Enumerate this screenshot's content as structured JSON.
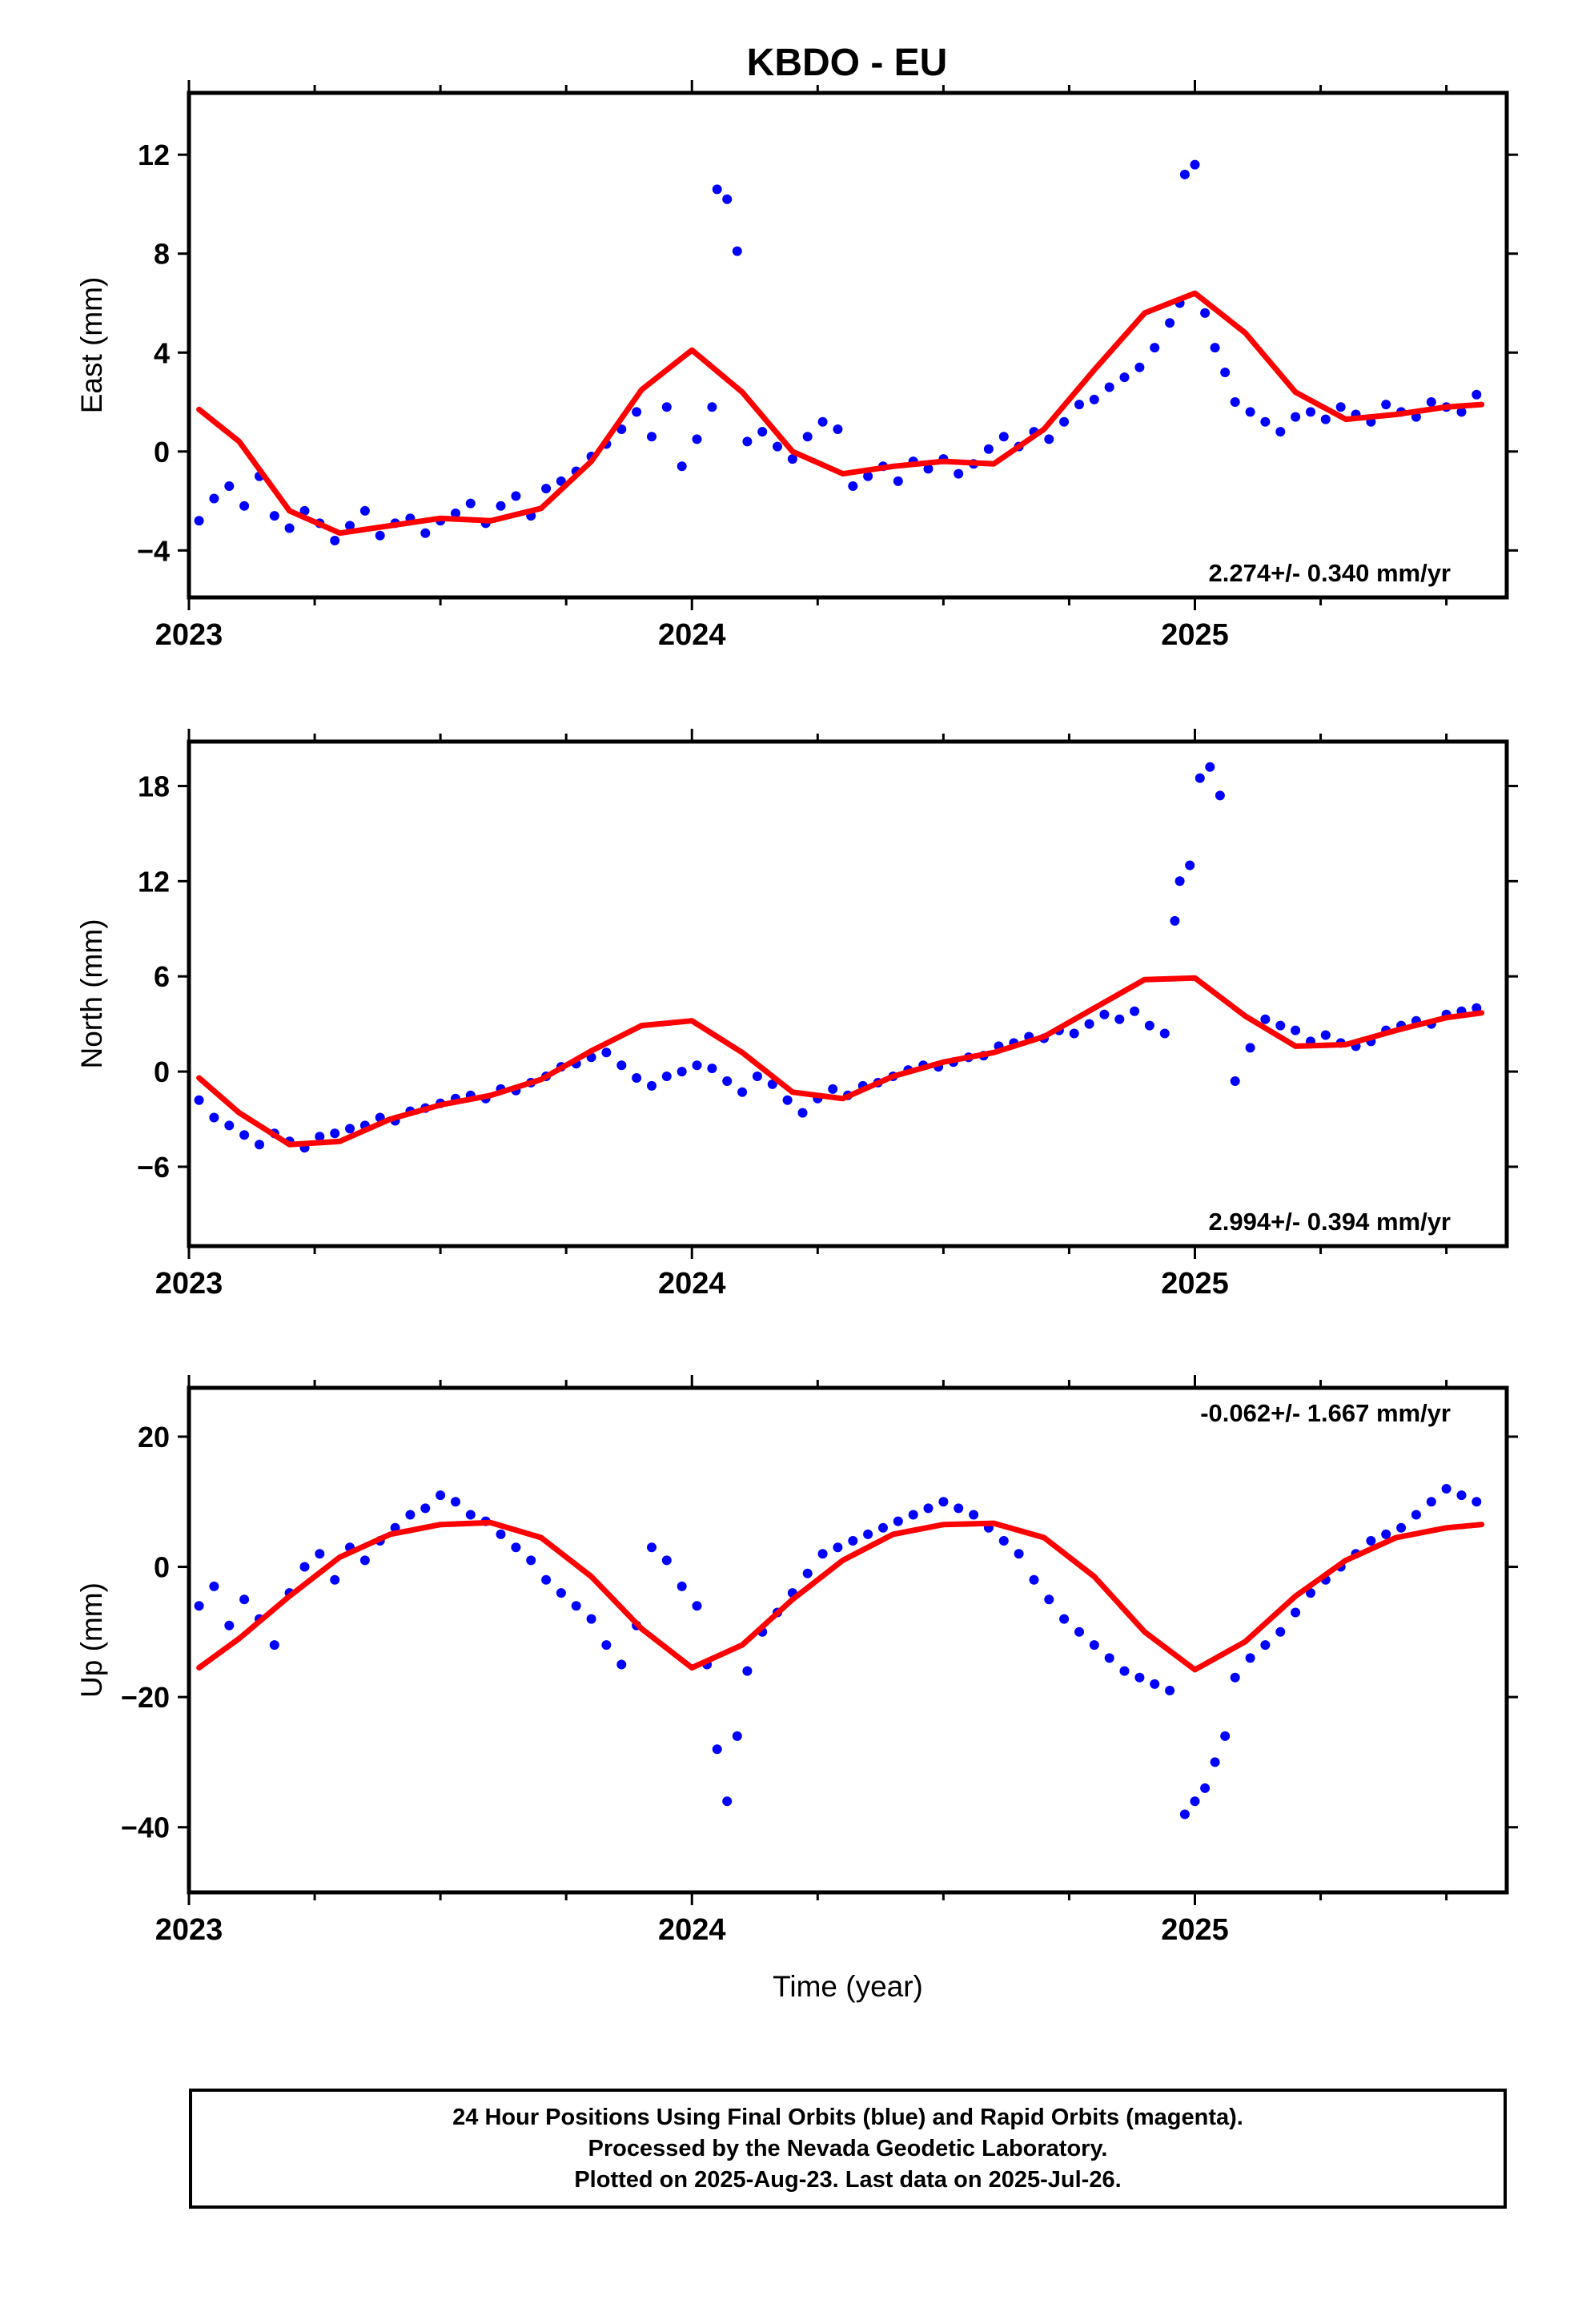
{
  "figure_title": "KBDO - EU",
  "chart_data": [
    {
      "type": "scatter",
      "xlabel": "",
      "ylabel": "East (mm)",
      "xlim": [
        2023.0,
        2025.62
      ],
      "ylim": [
        -5.9,
        14.5
      ],
      "x_ticks": [
        2023,
        2024,
        2025
      ],
      "x_tick_labels": [
        "2023",
        "2024",
        "2025"
      ],
      "y_ticks": [
        -4,
        0,
        4,
        8,
        12
      ],
      "y_tick_labels": [
        "−4",
        "0",
        "4",
        "8",
        "12"
      ],
      "rate_annotation": "2.274+/- 0.340 mm/yr",
      "annotation_position": "bottom-right",
      "series": [
        {
          "role": "observations",
          "color": "#0000ff",
          "style": "dots",
          "x": [
            2023.02,
            2023.05,
            2023.08,
            2023.11,
            2023.14,
            2023.17,
            2023.2,
            2023.23,
            2023.26,
            2023.29,
            2023.32,
            2023.35,
            2023.38,
            2023.41,
            2023.44,
            2023.47,
            2023.5,
            2023.53,
            2023.56,
            2023.59,
            2023.62,
            2023.65,
            2023.68,
            2023.71,
            2023.74,
            2023.77,
            2023.8,
            2023.83,
            2023.86,
            2023.89,
            2023.92,
            2023.95,
            2023.98,
            2024.01,
            2024.04,
            2024.05,
            2024.07,
            2024.09,
            2024.11,
            2024.14,
            2024.17,
            2024.2,
            2024.23,
            2024.26,
            2024.29,
            2024.32,
            2024.35,
            2024.38,
            2024.41,
            2024.44,
            2024.47,
            2024.5,
            2024.53,
            2024.56,
            2024.59,
            2024.62,
            2024.65,
            2024.68,
            2024.71,
            2024.74,
            2024.77,
            2024.8,
            2024.83,
            2024.86,
            2024.89,
            2024.92,
            2024.95,
            2024.97,
            2024.98,
            2025.0,
            2025.02,
            2025.04,
            2025.06,
            2025.08,
            2025.11,
            2025.14,
            2025.17,
            2025.2,
            2025.23,
            2025.26,
            2025.29,
            2025.32,
            2025.35,
            2025.38,
            2025.41,
            2025.44,
            2025.47,
            2025.5,
            2025.53,
            2025.56
          ],
          "y": [
            -2.8,
            -1.9,
            -1.4,
            -2.2,
            -1.0,
            -2.6,
            -3.1,
            -2.4,
            -2.9,
            -3.6,
            -3.0,
            -2.4,
            -3.4,
            -2.9,
            -2.7,
            -3.3,
            -2.8,
            -2.5,
            -2.1,
            -2.9,
            -2.2,
            -1.8,
            -2.6,
            -1.5,
            -1.2,
            -0.8,
            -0.2,
            0.3,
            0.9,
            1.6,
            0.6,
            1.8,
            -0.6,
            0.5,
            1.8,
            10.6,
            10.2,
            8.1,
            0.4,
            0.8,
            0.2,
            -0.3,
            0.6,
            1.2,
            0.9,
            -1.4,
            -1.0,
            -0.6,
            -1.2,
            -0.4,
            -0.7,
            -0.3,
            -0.9,
            -0.5,
            0.1,
            0.6,
            0.2,
            0.8,
            0.5,
            1.2,
            1.9,
            2.1,
            2.6,
            3.0,
            3.4,
            4.2,
            5.2,
            6.0,
            11.2,
            11.6,
            5.6,
            4.2,
            3.2,
            2.0,
            1.6,
            1.2,
            0.8,
            1.4,
            1.6,
            1.3,
            1.8,
            1.5,
            1.2,
            1.9,
            1.6,
            1.4,
            2.0,
            1.8,
            1.6,
            2.3
          ]
        },
        {
          "role": "model-fit",
          "color": "#ff0000",
          "style": "line",
          "x": [
            2023.02,
            2023.1,
            2023.2,
            2023.3,
            2023.4,
            2023.5,
            2023.6,
            2023.7,
            2023.8,
            2023.9,
            2024.0,
            2024.1,
            2024.2,
            2024.3,
            2024.4,
            2024.5,
            2024.6,
            2024.7,
            2024.8,
            2024.9,
            2025.0,
            2025.1,
            2025.2,
            2025.3,
            2025.4,
            2025.5,
            2025.57
          ],
          "y": [
            1.7,
            0.4,
            -2.4,
            -3.3,
            -3.0,
            -2.7,
            -2.8,
            -2.3,
            -0.4,
            2.5,
            4.1,
            2.4,
            0.0,
            -0.9,
            -0.6,
            -0.4,
            -0.5,
            0.9,
            3.3,
            5.6,
            6.4,
            4.8,
            2.4,
            1.3,
            1.5,
            1.8,
            1.9
          ]
        }
      ]
    },
    {
      "type": "scatter",
      "xlabel": "",
      "ylabel": "North (mm)",
      "xlim": [
        2023.0,
        2025.62
      ],
      "ylim": [
        -11.0,
        20.8
      ],
      "x_ticks": [
        2023,
        2024,
        2025
      ],
      "x_tick_labels": [
        "2023",
        "2024",
        "2025"
      ],
      "y_ticks": [
        -6,
        0,
        6,
        12,
        18
      ],
      "y_tick_labels": [
        "−6",
        "0",
        "6",
        "12",
        "18"
      ],
      "rate_annotation": "2.994+/- 0.394 mm/yr",
      "annotation_position": "bottom-right",
      "series": [
        {
          "role": "observations",
          "color": "#0000ff",
          "style": "dots",
          "x": [
            2023.02,
            2023.05,
            2023.08,
            2023.11,
            2023.14,
            2023.17,
            2023.2,
            2023.23,
            2023.26,
            2023.29,
            2023.32,
            2023.35,
            2023.38,
            2023.41,
            2023.44,
            2023.47,
            2023.5,
            2023.53,
            2023.56,
            2023.59,
            2023.62,
            2023.65,
            2023.68,
            2023.71,
            2023.74,
            2023.77,
            2023.8,
            2023.83,
            2023.86,
            2023.89,
            2023.92,
            2023.95,
            2023.98,
            2024.01,
            2024.04,
            2024.07,
            2024.1,
            2024.13,
            2024.16,
            2024.19,
            2024.22,
            2024.25,
            2024.28,
            2024.31,
            2024.34,
            2024.37,
            2024.4,
            2024.43,
            2024.46,
            2024.49,
            2024.52,
            2024.55,
            2024.58,
            2024.61,
            2024.64,
            2024.67,
            2024.7,
            2024.73,
            2024.76,
            2024.79,
            2024.82,
            2024.85,
            2024.88,
            2024.91,
            2024.94,
            2024.96,
            2024.97,
            2024.99,
            2025.01,
            2025.03,
            2025.05,
            2025.08,
            2025.11,
            2025.14,
            2025.17,
            2025.2,
            2025.23,
            2025.26,
            2025.29,
            2025.32,
            2025.35,
            2025.38,
            2025.41,
            2025.44,
            2025.47,
            2025.5,
            2025.53,
            2025.56
          ],
          "y": [
            -1.8,
            -2.9,
            -3.4,
            -4.0,
            -4.6,
            -3.9,
            -4.4,
            -4.8,
            -4.1,
            -3.9,
            -3.6,
            -3.4,
            -2.9,
            -3.1,
            -2.5,
            -2.3,
            -2.0,
            -1.7,
            -1.5,
            -1.7,
            -1.1,
            -1.2,
            -0.7,
            -0.3,
            0.3,
            0.5,
            0.9,
            1.2,
            0.4,
            -0.4,
            -0.9,
            -0.3,
            0.0,
            0.4,
            0.2,
            -0.6,
            -1.3,
            -0.3,
            -0.8,
            -1.8,
            -2.6,
            -1.7,
            -1.1,
            -1.5,
            -0.9,
            -0.7,
            -0.3,
            0.1,
            0.4,
            0.3,
            0.6,
            0.9,
            1.0,
            1.6,
            1.8,
            2.2,
            2.1,
            2.6,
            2.4,
            3.0,
            3.6,
            3.3,
            3.8,
            2.9,
            2.4,
            9.5,
            12.0,
            13.0,
            18.5,
            19.2,
            17.4,
            -0.6,
            1.5,
            3.3,
            2.9,
            2.6,
            1.9,
            2.3,
            1.8,
            1.6,
            1.9,
            2.6,
            2.9,
            3.2,
            3.0,
            3.6,
            3.8,
            4.0
          ]
        },
        {
          "role": "model-fit",
          "color": "#ff0000",
          "style": "line",
          "x": [
            2023.02,
            2023.1,
            2023.2,
            2023.3,
            2023.4,
            2023.5,
            2023.6,
            2023.7,
            2023.8,
            2023.9,
            2024.0,
            2024.1,
            2024.2,
            2024.3,
            2024.4,
            2024.5,
            2024.6,
            2024.7,
            2024.8,
            2024.9,
            2025.0,
            2025.1,
            2025.2,
            2025.3,
            2025.4,
            2025.5,
            2025.57
          ],
          "y": [
            -0.4,
            -2.6,
            -4.6,
            -4.4,
            -3.0,
            -2.1,
            -1.5,
            -0.5,
            1.3,
            2.9,
            3.2,
            1.2,
            -1.3,
            -1.7,
            -0.3,
            0.6,
            1.2,
            2.2,
            4.0,
            5.8,
            5.9,
            3.5,
            1.6,
            1.7,
            2.6,
            3.4,
            3.7
          ]
        }
      ]
    },
    {
      "type": "scatter",
      "xlabel": "Time (year)",
      "ylabel": "Up (mm)",
      "xlim": [
        2023.0,
        2025.62
      ],
      "ylim": [
        -50.0,
        27.5
      ],
      "x_ticks": [
        2023,
        2024,
        2025
      ],
      "x_tick_labels": [
        "2023",
        "2024",
        "2025"
      ],
      "y_ticks": [
        -40,
        -20,
        0,
        20
      ],
      "y_tick_labels": [
        "−40",
        "−20",
        "0",
        "20"
      ],
      "rate_annotation": "-0.062+/- 1.667 mm/yr",
      "annotation_position": "top-right",
      "series": [
        {
          "role": "observations",
          "color": "#0000ff",
          "style": "dots",
          "x": [
            2023.02,
            2023.05,
            2023.08,
            2023.11,
            2023.14,
            2023.17,
            2023.2,
            2023.23,
            2023.26,
            2023.29,
            2023.32,
            2023.35,
            2023.38,
            2023.41,
            2023.44,
            2023.47,
            2023.5,
            2023.53,
            2023.56,
            2023.59,
            2023.62,
            2023.65,
            2023.68,
            2023.71,
            2023.74,
            2023.77,
            2023.8,
            2023.83,
            2023.86,
            2023.89,
            2023.92,
            2023.95,
            2023.98,
            2024.01,
            2024.03,
            2024.05,
            2024.07,
            2024.09,
            2024.11,
            2024.14,
            2024.17,
            2024.2,
            2024.23,
            2024.26,
            2024.29,
            2024.32,
            2024.35,
            2024.38,
            2024.41,
            2024.44,
            2024.47,
            2024.5,
            2024.53,
            2024.56,
            2024.59,
            2024.62,
            2024.65,
            2024.68,
            2024.71,
            2024.74,
            2024.77,
            2024.8,
            2024.83,
            2024.86,
            2024.89,
            2024.92,
            2024.95,
            2024.98,
            2025.0,
            2025.02,
            2025.04,
            2025.06,
            2025.08,
            2025.11,
            2025.14,
            2025.17,
            2025.2,
            2025.23,
            2025.26,
            2025.29,
            2025.32,
            2025.35,
            2025.38,
            2025.41,
            2025.44,
            2025.47,
            2025.5,
            2025.53,
            2025.56
          ],
          "y": [
            -6,
            -3,
            -9,
            -5,
            -8,
            -12,
            -4,
            0,
            2,
            -2,
            3,
            1,
            4,
            6,
            8,
            9,
            11,
            10,
            8,
            7,
            5,
            3,
            1,
            -2,
            -4,
            -6,
            -8,
            -12,
            -15,
            -9,
            3,
            1,
            -3,
            -6,
            -15,
            -28,
            -36,
            -26,
            -16,
            -10,
            -7,
            -4,
            -1,
            2,
            3,
            4,
            5,
            6,
            7,
            8,
            9,
            10,
            9,
            8,
            6,
            4,
            2,
            -2,
            -5,
            -8,
            -10,
            -12,
            -14,
            -16,
            -17,
            -18,
            -19,
            -38,
            -36,
            -34,
            -30,
            -26,
            -17,
            -14,
            -12,
            -10,
            -7,
            -4,
            -2,
            0,
            2,
            4,
            5,
            6,
            8,
            10,
            12,
            11,
            10
          ]
        },
        {
          "role": "model-fit",
          "color": "#ff0000",
          "style": "line",
          "x": [
            2023.02,
            2023.1,
            2023.2,
            2023.3,
            2023.4,
            2023.5,
            2023.6,
            2023.7,
            2023.8,
            2023.9,
            2024.0,
            2024.1,
            2024.2,
            2024.3,
            2024.4,
            2024.5,
            2024.6,
            2024.7,
            2024.8,
            2024.9,
            2025.0,
            2025.1,
            2025.2,
            2025.3,
            2025.4,
            2025.5,
            2025.57
          ],
          "y": [
            -15.5,
            -11.0,
            -4.5,
            1.5,
            5.0,
            6.5,
            6.8,
            4.5,
            -1.5,
            -9.5,
            -15.5,
            -12.0,
            -5.0,
            1.0,
            5.0,
            6.5,
            6.7,
            4.5,
            -1.5,
            -10.0,
            -15.8,
            -11.5,
            -4.5,
            1.0,
            4.5,
            6.0,
            6.5
          ]
        }
      ]
    }
  ],
  "footer": {
    "line1": "24 Hour Positions Using Final Orbits (blue) and Rapid Orbits (magenta).",
    "line2": "Processed by the Nevada Geodetic Laboratory.",
    "line3": "Plotted on 2025-Aug-23. Last data on 2025-Jul-26."
  }
}
